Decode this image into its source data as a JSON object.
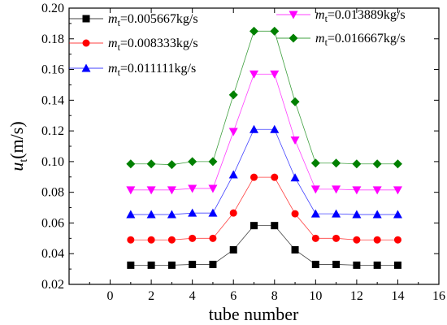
{
  "chart_data": {
    "type": "line",
    "title": "",
    "xlabel": "tube number",
    "ylabel": {
      "main": "u",
      "sub": "t",
      "unit": "(m/s)"
    },
    "xlim": [
      -2,
      16
    ],
    "ylim": [
      0.02,
      0.2
    ],
    "xticks": [
      0,
      2,
      4,
      6,
      8,
      10,
      12,
      14,
      16
    ],
    "xtick_labels": [
      "0",
      "2",
      "4",
      "6",
      "8",
      "10",
      "12",
      "14",
      "16"
    ],
    "yticks": [
      0.02,
      0.04,
      0.06,
      0.08,
      0.1,
      0.12,
      0.14,
      0.16,
      0.18,
      0.2
    ],
    "ytick_labels": [
      "0.02",
      "0.04",
      "0.06",
      "0.08",
      "0.10",
      "0.12",
      "0.14",
      "0.16",
      "0.18",
      "0.20"
    ],
    "grid": false,
    "legend_placement": "top, two columns",
    "x": [
      1,
      2,
      3,
      4,
      5,
      6,
      7,
      8,
      9,
      10,
      11,
      12,
      13,
      14
    ],
    "series": [
      {
        "label_var": "m",
        "label_sub": "t",
        "label_value": "=0.005667kg/s",
        "color": "#000000",
        "marker": "square",
        "values": [
          0.0325,
          0.0325,
          0.0325,
          0.033,
          0.033,
          0.0425,
          0.0583,
          0.0583,
          0.0425,
          0.033,
          0.033,
          0.0325,
          0.0325,
          0.0325
        ]
      },
      {
        "label_var": "m",
        "label_sub": "t",
        "label_value": "=0.008333kg/s",
        "color": "#ff0000",
        "marker": "circle",
        "values": [
          0.049,
          0.049,
          0.049,
          0.05,
          0.05,
          0.0665,
          0.0898,
          0.0898,
          0.066,
          0.05,
          0.05,
          0.049,
          0.049,
          0.049
        ]
      },
      {
        "label_var": "m",
        "label_sub": "t",
        "label_value": "=0.011111kg/s",
        "color": "#0000ff",
        "marker": "triangle-up",
        "values": [
          0.0655,
          0.0655,
          0.0655,
          0.0665,
          0.0665,
          0.0915,
          0.121,
          0.121,
          0.0895,
          0.066,
          0.066,
          0.0655,
          0.0655,
          0.0655
        ]
      },
      {
        "label_var": "m",
        "label_sub": "t",
        "label_value": "=0.013889kg/s",
        "color": "#ff00ff",
        "marker": "triangle-down",
        "values": [
          0.0815,
          0.0815,
          0.0815,
          0.0825,
          0.0825,
          0.1195,
          0.157,
          0.157,
          0.114,
          0.082,
          0.082,
          0.0815,
          0.0815,
          0.0815
        ]
      },
      {
        "label_var": "m",
        "label_sub": "t",
        "label_value": "=0.016667kg/s",
        "color": "#008000",
        "marker": "diamond",
        "values": [
          0.0985,
          0.0985,
          0.098,
          0.1,
          0.1,
          0.1435,
          0.185,
          0.185,
          0.139,
          0.099,
          0.099,
          0.0985,
          0.0985,
          0.0985
        ]
      }
    ]
  }
}
